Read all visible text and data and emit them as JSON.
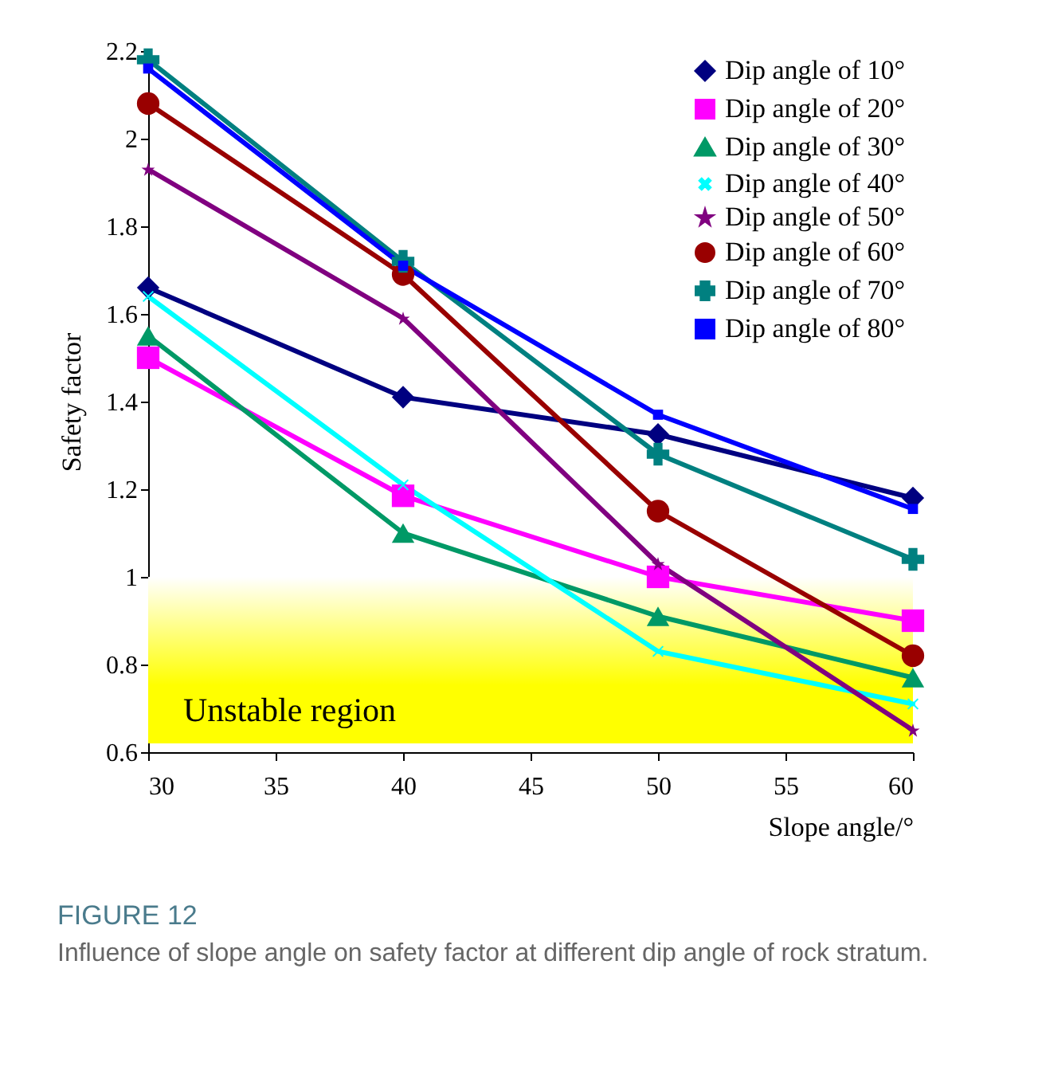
{
  "chart_data": {
    "type": "line",
    "title": "FIGURE 12",
    "subtitle": "Influence of slope angle on safety factor at different dip angle of rock stratum.",
    "xlabel": "Slope angle/°",
    "ylabel": "Safety factor",
    "x": [
      30,
      40,
      50,
      60
    ],
    "series": [
      {
        "name": "Dip angle of 10°",
        "color": "#000080",
        "marker": "diamond",
        "values": [
          1.66,
          1.41,
          1.325,
          1.18
        ]
      },
      {
        "name": "Dip angle of 20°",
        "color": "#ff00ff",
        "marker": "square",
        "values": [
          1.5,
          1.185,
          1.0,
          0.9
        ]
      },
      {
        "name": "Dip angle of 30°",
        "color": "#009966",
        "marker": "triangle",
        "values": [
          1.55,
          1.1,
          0.91,
          0.77
        ]
      },
      {
        "name": "Dip angle of 40°",
        "color": "#00ffff",
        "marker": "x",
        "values": [
          1.64,
          1.21,
          0.83,
          0.71
        ]
      },
      {
        "name": "Dip angle of 50°",
        "color": "#800080",
        "marker": "star",
        "values": [
          1.93,
          1.59,
          1.03,
          0.65
        ]
      },
      {
        "name": "Dip angle of 60°",
        "color": "#990000",
        "marker": "circle",
        "values": [
          2.08,
          1.69,
          1.15,
          0.82
        ]
      },
      {
        "name": "Dip angle of 70°",
        "color": "#008080",
        "marker": "cross",
        "values": [
          2.18,
          1.72,
          1.28,
          1.04
        ]
      },
      {
        "name": "Dip angle of 80°",
        "color": "#0000ff",
        "marker": "square",
        "values": [
          2.16,
          1.71,
          1.37,
          1.155
        ]
      }
    ],
    "xlim": [
      30,
      60
    ],
    "xticks": [
      30,
      35,
      40,
      45,
      50,
      55,
      60
    ],
    "ylim": [
      0.6,
      2.2
    ],
    "yticks": [
      0.6,
      0.8,
      1,
      1.2,
      1.4,
      1.6,
      1.8,
      2,
      2.2
    ],
    "bands": [
      {
        "axis": "y",
        "from": 0.62,
        "to": 1,
        "label": "Unstable region",
        "color": "#ffff00"
      }
    ],
    "legend": "top right",
    "grid": false,
    "line_style": "solid"
  }
}
